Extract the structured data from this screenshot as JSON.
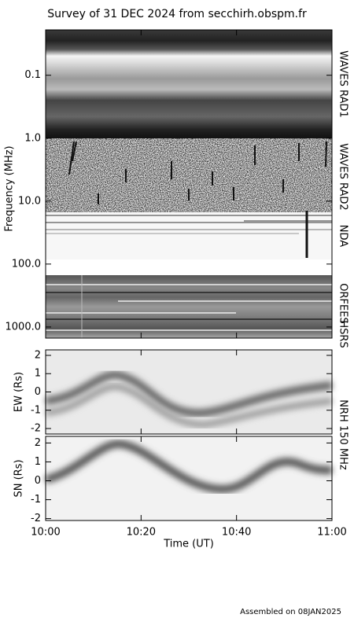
{
  "chart_data": [
    {
      "type": "spectrogram",
      "title": "Survey of 31 DEC 2024 from secchirh.obspm.fr",
      "ylabel": "Frequency (MHz)",
      "log_scale": true,
      "y_inverted": true,
      "ylim": [
        0.019,
        1500
      ],
      "yticks": [
        0.1,
        {
          "value": 1,
          "label": "1.0"
        },
        {
          "value": 10,
          "label": "10.0"
        },
        {
          "value": 100,
          "label": "100.0"
        },
        {
          "value": 1000,
          "label": "1000.0"
        }
      ],
      "bands": [
        "WAVES RAD1",
        "WAVES RAD2",
        "NDA",
        "ORFEES",
        "HSRS"
      ]
    },
    {
      "type": "heatmap",
      "ylabel": "EW (Rs)",
      "ylim": [
        -2.3,
        2.3
      ],
      "yticks": [
        -2,
        -1,
        0,
        1,
        2
      ]
    },
    {
      "type": "heatmap",
      "ylabel": "SN (Rs)",
      "ylim": [
        -2.1,
        2.35
      ],
      "yticks": [
        -2,
        -1,
        0,
        1,
        2
      ],
      "side_label": "NRH 150 MHz",
      "xlabel": "Time (UT)",
      "xlim": [
        0,
        60
      ],
      "xticks": [
        {
          "value": 0,
          "label": "10:00"
        },
        {
          "value": 20,
          "label": "10:20"
        },
        {
          "value": 40,
          "label": "10:40"
        },
        {
          "value": 60,
          "label": "11:00"
        }
      ]
    }
  ],
  "footer": "Assembled on 08JAN2025"
}
